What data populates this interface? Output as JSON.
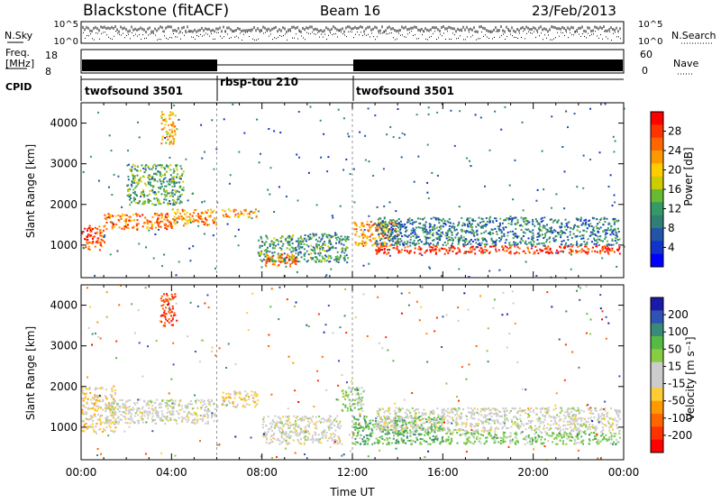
{
  "header": {
    "radar": "Blackstone (fitACF)",
    "beam": "Beam 16",
    "date": "23/Feb/2013"
  },
  "top_panels": {
    "nsky_label": "N.Sky",
    "nsky_ticks": [
      "10^5",
      "10^0"
    ],
    "nsearch_label": "N.Search",
    "nsearch_ticks": [
      "10^5",
      "10^0"
    ],
    "freq_label_1": "Freq.",
    "freq_label_2": "[MHz]",
    "freq_ticks": [
      "18",
      "8"
    ],
    "nave_label": "Nave",
    "nave_ticks": [
      "60",
      "0"
    ],
    "cpid_label": "CPID",
    "cpid_segments": [
      {
        "label": "twofsound 3501",
        "start": 0.0,
        "end": 6.0
      },
      {
        "label": "rbsp-tou 210",
        "start": 6.0,
        "end": 12.0
      },
      {
        "label": "twofsound 3501",
        "start": 12.0,
        "end": 24.0
      }
    ]
  },
  "colorbars": {
    "power": {
      "title": "Power [dB]",
      "ticks": [
        "28",
        "24",
        "20",
        "16",
        "12",
        "8",
        "4"
      ],
      "colors": [
        "#ff0000",
        "#ff3300",
        "#ff6600",
        "#ff9900",
        "#ffcc00",
        "#cccc00",
        "#66bb33",
        "#339966",
        "#2f7f77",
        "#2255aa",
        "#1133cc",
        "#0000ff"
      ]
    },
    "velocity": {
      "title": "Velocity [m s⁻¹]",
      "ticks": [
        "200",
        "100",
        "50",
        "15",
        "-15",
        "-50",
        "-100",
        "-200"
      ],
      "colors": [
        "#1a1aa8",
        "#2f52b3",
        "#3a8a7a",
        "#55bb44",
        "#88cc44",
        "#cccccc",
        "#cccccc",
        "#ffcc33",
        "#ff9900",
        "#ff6600",
        "#ff3300",
        "#ff0000"
      ]
    }
  },
  "chart_data": [
    {
      "type": "heatmap",
      "name": "power",
      "ylabel": "Slant Range [km]",
      "xlabel": "",
      "xlim": [
        0,
        24
      ],
      "ylim": [
        200,
        4500
      ],
      "yticks": [
        "1000",
        "2000",
        "3000",
        "4000"
      ],
      "bands": [
        {
          "t0": 0.0,
          "t1": 1.0,
          "r0": 900,
          "r1": 1500,
          "v": 26
        },
        {
          "t0": 1.0,
          "t1": 4.0,
          "r0": 1400,
          "r1": 1800,
          "v": 24
        },
        {
          "t0": 4.0,
          "t1": 6.0,
          "r0": 1500,
          "r1": 1900,
          "v": 22
        },
        {
          "t0": 2.0,
          "t1": 4.5,
          "r0": 2000,
          "r1": 3000,
          "v": 12
        },
        {
          "t0": 3.5,
          "t1": 4.2,
          "r0": 3500,
          "r1": 4300,
          "v": 20
        },
        {
          "t0": 6.2,
          "t1": 7.8,
          "r0": 1700,
          "r1": 1900,
          "v": 22
        },
        {
          "t0": 7.8,
          "t1": 11.8,
          "r0": 600,
          "r1": 1300,
          "v": 10
        },
        {
          "t0": 8.0,
          "t1": 9.5,
          "r0": 500,
          "r1": 800,
          "v": 24
        },
        {
          "t0": 12.0,
          "t1": 14.0,
          "r0": 1000,
          "r1": 1600,
          "v": 22
        },
        {
          "t0": 13.0,
          "t1": 23.8,
          "r0": 800,
          "r1": 1000,
          "v": 28
        },
        {
          "t0": 13.0,
          "t1": 23.8,
          "r0": 1000,
          "r1": 1700,
          "v": 8
        }
      ]
    },
    {
      "type": "heatmap",
      "name": "velocity",
      "ylabel": "Slant Range [km]",
      "xlabel": "Time UT",
      "xlim": [
        0,
        24
      ],
      "ylim": [
        200,
        4500
      ],
      "yticks": [
        "1000",
        "2000",
        "3000",
        "4000"
      ],
      "xticks": [
        "00:00",
        "04:00",
        "08:00",
        "12:00",
        "16:00",
        "20:00",
        "00:00"
      ],
      "bands": [
        {
          "t0": 0.0,
          "t1": 1.5,
          "r0": 900,
          "r1": 2000,
          "v": -50
        },
        {
          "t0": 1.0,
          "t1": 6.0,
          "r0": 1100,
          "r1": 1700,
          "v": 0
        },
        {
          "t0": 3.5,
          "t1": 4.2,
          "r0": 3500,
          "r1": 4300,
          "v": -200
        },
        {
          "t0": 6.2,
          "t1": 7.8,
          "r0": 1500,
          "r1": 1900,
          "v": -60
        },
        {
          "t0": 8.0,
          "t1": 11.5,
          "r0": 600,
          "r1": 1300,
          "v": 0
        },
        {
          "t0": 11.5,
          "t1": 12.5,
          "r0": 1400,
          "r1": 2000,
          "v": 70
        },
        {
          "t0": 12.0,
          "t1": 16.0,
          "r0": 600,
          "r1": 1300,
          "v": 120
        },
        {
          "t0": 13.0,
          "t1": 23.8,
          "r0": 900,
          "r1": 1500,
          "v": 0
        },
        {
          "t0": 16.0,
          "t1": 23.8,
          "r0": 600,
          "r1": 900,
          "v": 80
        }
      ]
    }
  ]
}
